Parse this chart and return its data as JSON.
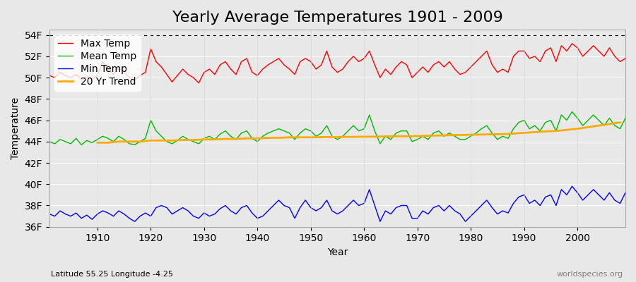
{
  "title": "Yearly Average Temperatures 1901 - 2009",
  "xlabel": "Year",
  "ylabel": "Temperature",
  "subtitle_left": "Latitude 55.25 Longitude -4.25",
  "subtitle_right": "worldspecies.org",
  "years": [
    1901,
    1902,
    1903,
    1904,
    1905,
    1906,
    1907,
    1908,
    1909,
    1910,
    1911,
    1912,
    1913,
    1914,
    1915,
    1916,
    1917,
    1918,
    1919,
    1920,
    1921,
    1922,
    1923,
    1924,
    1925,
    1926,
    1927,
    1928,
    1929,
    1930,
    1931,
    1932,
    1933,
    1934,
    1935,
    1936,
    1937,
    1938,
    1939,
    1940,
    1941,
    1942,
    1943,
    1944,
    1945,
    1946,
    1947,
    1948,
    1949,
    1950,
    1951,
    1952,
    1953,
    1954,
    1955,
    1956,
    1957,
    1958,
    1959,
    1960,
    1961,
    1962,
    1963,
    1964,
    1965,
    1966,
    1967,
    1968,
    1969,
    1970,
    1971,
    1972,
    1973,
    1974,
    1975,
    1976,
    1977,
    1978,
    1979,
    1980,
    1981,
    1982,
    1983,
    1984,
    1985,
    1986,
    1987,
    1988,
    1989,
    1990,
    1991,
    1992,
    1993,
    1994,
    1995,
    1996,
    1997,
    1998,
    1999,
    2000,
    2001,
    2002,
    2003,
    2004,
    2005,
    2006,
    2007,
    2008,
    2009
  ],
  "max_temp": [
    50.2,
    50.0,
    50.5,
    50.2,
    50.0,
    50.3,
    49.8,
    50.1,
    49.9,
    50.2,
    51.5,
    50.8,
    50.3,
    51.0,
    50.5,
    50.0,
    49.8,
    50.2,
    50.5,
    52.7,
    51.5,
    51.0,
    50.3,
    49.6,
    50.2,
    50.8,
    50.3,
    50.0,
    49.5,
    50.5,
    50.8,
    50.3,
    51.2,
    51.5,
    50.8,
    50.3,
    51.5,
    51.8,
    50.5,
    50.2,
    50.8,
    51.2,
    51.5,
    51.8,
    51.2,
    50.8,
    50.3,
    51.5,
    51.8,
    51.5,
    50.8,
    51.2,
    52.5,
    51.0,
    50.5,
    50.8,
    51.5,
    52.0,
    51.5,
    51.8,
    52.5,
    51.2,
    50.0,
    50.8,
    50.3,
    51.0,
    51.5,
    51.2,
    50.0,
    50.5,
    51.0,
    50.5,
    51.2,
    51.5,
    51.0,
    51.5,
    50.8,
    50.3,
    50.5,
    51.0,
    51.5,
    52.0,
    52.5,
    51.2,
    50.5,
    50.8,
    50.5,
    52.0,
    52.5,
    52.5,
    51.8,
    52.0,
    51.5,
    52.5,
    52.8,
    51.5,
    53.0,
    52.5,
    53.2,
    52.8,
    52.0,
    52.5,
    53.0,
    52.5,
    52.0,
    52.8,
    52.0,
    51.5,
    51.8
  ],
  "mean_temp": [
    44.0,
    43.8,
    44.2,
    44.0,
    43.8,
    44.3,
    43.7,
    44.1,
    43.9,
    44.2,
    44.5,
    44.3,
    44.0,
    44.5,
    44.2,
    43.8,
    43.7,
    44.0,
    44.3,
    46.0,
    45.0,
    44.5,
    44.0,
    43.8,
    44.1,
    44.5,
    44.2,
    44.0,
    43.8,
    44.3,
    44.5,
    44.2,
    44.7,
    45.0,
    44.5,
    44.2,
    44.8,
    45.0,
    44.3,
    44.0,
    44.5,
    44.8,
    45.0,
    45.2,
    45.0,
    44.8,
    44.2,
    44.8,
    45.2,
    45.0,
    44.5,
    44.8,
    45.5,
    44.5,
    44.2,
    44.5,
    45.0,
    45.5,
    45.0,
    45.2,
    46.5,
    45.0,
    43.8,
    44.5,
    44.2,
    44.8,
    45.0,
    45.0,
    44.0,
    44.2,
    44.5,
    44.2,
    44.8,
    45.0,
    44.5,
    44.8,
    44.5,
    44.2,
    44.2,
    44.5,
    44.8,
    45.2,
    45.5,
    44.8,
    44.2,
    44.5,
    44.3,
    45.2,
    45.8,
    46.0,
    45.2,
    45.5,
    45.0,
    45.8,
    46.0,
    45.0,
    46.5,
    46.0,
    46.8,
    46.2,
    45.5,
    46.0,
    46.5,
    46.0,
    45.5,
    46.2,
    45.5,
    45.2,
    46.2
  ],
  "min_temp": [
    37.2,
    37.0,
    37.5,
    37.2,
    37.0,
    37.3,
    36.8,
    37.1,
    36.7,
    37.2,
    37.5,
    37.3,
    37.0,
    37.5,
    37.2,
    36.8,
    36.5,
    37.0,
    37.3,
    37.0,
    37.8,
    38.0,
    37.8,
    37.2,
    37.5,
    37.8,
    37.5,
    37.0,
    36.8,
    37.3,
    37.0,
    37.2,
    37.7,
    38.0,
    37.5,
    37.2,
    37.8,
    38.0,
    37.3,
    36.8,
    37.0,
    37.5,
    38.0,
    38.5,
    38.0,
    37.8,
    36.8,
    37.8,
    38.5,
    37.8,
    37.5,
    37.8,
    38.5,
    37.5,
    37.2,
    37.5,
    38.0,
    38.5,
    38.0,
    38.2,
    39.5,
    38.0,
    36.5,
    37.5,
    37.2,
    37.8,
    38.0,
    38.0,
    36.8,
    36.8,
    37.5,
    37.2,
    37.8,
    38.0,
    37.5,
    38.0,
    37.5,
    37.2,
    36.5,
    37.0,
    37.5,
    38.0,
    38.5,
    37.8,
    37.2,
    37.5,
    37.3,
    38.2,
    38.8,
    39.0,
    38.2,
    38.5,
    38.0,
    38.8,
    39.0,
    38.0,
    39.5,
    39.0,
    39.8,
    39.2,
    38.5,
    39.0,
    39.5,
    39.0,
    38.5,
    39.2,
    38.5,
    38.2,
    39.2
  ],
  "trend_years": [
    1910,
    1912,
    1914,
    1916,
    1918,
    1920,
    1922,
    1924,
    1926,
    1928,
    1930,
    1932,
    1934,
    1936,
    1938,
    1940,
    1942,
    1944,
    1946,
    1948,
    1950,
    1952,
    1954,
    1956,
    1958,
    1960,
    1962,
    1964,
    1966,
    1968,
    1970,
    1972,
    1974,
    1976,
    1978,
    1980,
    1982,
    1984,
    1986,
    1988,
    1990,
    1992,
    1994,
    1996,
    1998,
    2000,
    2002,
    2004,
    2006,
    2008
  ],
  "trend_values": [
    43.9,
    43.9,
    44.0,
    44.0,
    44.0,
    44.1,
    44.1,
    44.1,
    44.15,
    44.15,
    44.2,
    44.2,
    44.25,
    44.25,
    44.3,
    44.3,
    44.35,
    44.35,
    44.4,
    44.4,
    44.4,
    44.42,
    44.42,
    44.44,
    44.44,
    44.46,
    44.46,
    44.48,
    44.5,
    44.5,
    44.52,
    44.55,
    44.57,
    44.6,
    44.62,
    44.64,
    44.66,
    44.68,
    44.7,
    44.75,
    44.82,
    44.88,
    44.95,
    45.0,
    45.1,
    45.2,
    45.35,
    45.5,
    45.65,
    45.8
  ],
  "ylim": [
    36,
    54.5
  ],
  "yticks": [
    36,
    38,
    40,
    42,
    44,
    46,
    48,
    50,
    52,
    54
  ],
  "ytick_labels": [
    "36F",
    "38F",
    "40F",
    "42F",
    "44F",
    "46F",
    "48F",
    "50F",
    "52F",
    "54F"
  ],
  "xticks": [
    1910,
    1920,
    1930,
    1940,
    1950,
    1960,
    1970,
    1980,
    1990,
    2000
  ],
  "bg_color": "#e8e8e8",
  "plot_bg_color": "#e8e8e8",
  "max_color": "#ff0000",
  "mean_color": "#00bb00",
  "min_color": "#0000ff",
  "trend_color": "#ffaa00",
  "dashed_line_y": 54.0,
  "title_fontsize": 16,
  "axis_fontsize": 10,
  "legend_fontsize": 10
}
